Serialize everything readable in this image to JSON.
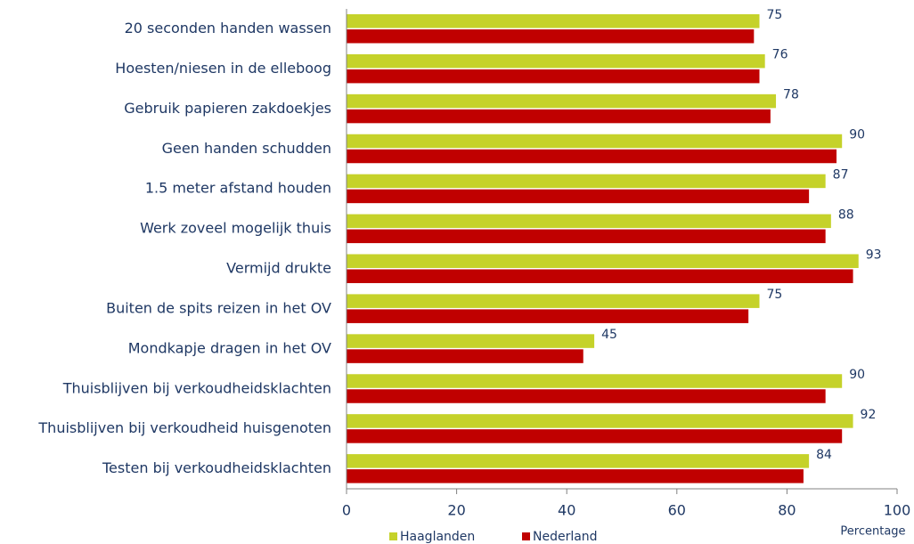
{
  "chart_data": {
    "type": "barh",
    "categories": [
      "20 seconden handen wassen",
      "Hoesten/niesen in de elleboog",
      "Gebruik papieren zakdoekjes",
      "Geen handen schudden",
      "1.5 meter afstand houden",
      "Werk zoveel mogelijk thuis",
      "Vermijd drukte",
      "Buiten de spits reizen in het OV",
      "Mondkapje dragen in het OV",
      "Thuisblijven bij verkoudheidsklachten",
      "Thuisblijven bij verkoudheid huisgenoten",
      "Testen bij verkoudheidsklachten"
    ],
    "series": [
      {
        "name": "Haaglanden",
        "color": "#c5d22a",
        "values": [
          75,
          76,
          78,
          90,
          87,
          88,
          93,
          75,
          45,
          90,
          92,
          84
        ],
        "labels": true
      },
      {
        "name": "Nederland",
        "color": "#c00000",
        "values": [
          74,
          75,
          77,
          89,
          84,
          87,
          92,
          73,
          43,
          87,
          90,
          83
        ],
        "labels": false
      }
    ],
    "xlim": [
      0,
      100
    ],
    "xticks": [
      0,
      20,
      40,
      60,
      80,
      100
    ],
    "x_label": "Percentage",
    "legend": "bottom"
  }
}
